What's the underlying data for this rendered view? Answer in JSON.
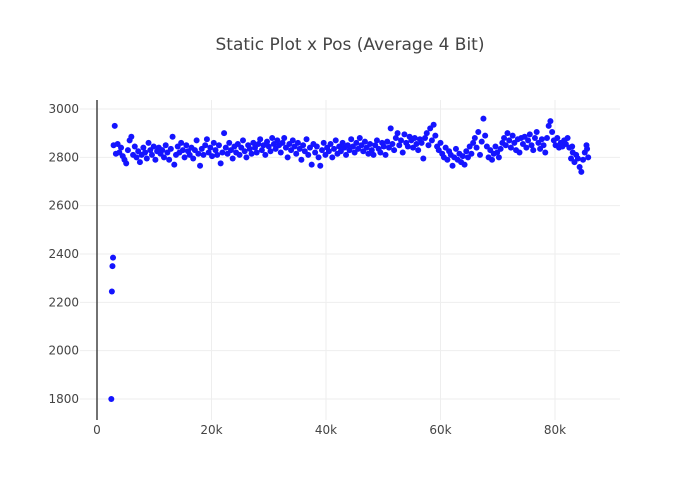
{
  "chart_data": {
    "type": "scatter",
    "title": "Static Plot x Pos (Average 4 Bit)",
    "xlabel": "",
    "ylabel": "",
    "xlim": [
      0,
      91400
    ],
    "ylim": [
      1715,
      3037
    ],
    "grid": true,
    "legend": "none",
    "marker_color": "#1414ff",
    "x_ticks": [
      {
        "v": 0,
        "label": "0"
      },
      {
        "v": 20000,
        "label": "20k"
      },
      {
        "v": 40000,
        "label": "40k"
      },
      {
        "v": 60000,
        "label": "60k"
      },
      {
        "v": 80000,
        "label": "80k"
      }
    ],
    "y_ticks": [
      {
        "v": 1800,
        "label": "1800"
      },
      {
        "v": 2000,
        "label": "2000"
      },
      {
        "v": 2200,
        "label": "2200"
      },
      {
        "v": 2400,
        "label": "2400"
      },
      {
        "v": 2600,
        "label": "2600"
      },
      {
        "v": 2800,
        "label": "2800"
      },
      {
        "v": 3000,
        "label": "3000"
      }
    ],
    "points": [
      [
        2500,
        1800
      ],
      [
        2600,
        2245
      ],
      [
        2700,
        2350
      ],
      [
        2800,
        2385
      ],
      [
        3100,
        2930
      ],
      [
        2900,
        2850
      ],
      [
        3300,
        2815
      ],
      [
        3600,
        2855
      ],
      [
        3900,
        2820
      ],
      [
        4200,
        2840
      ],
      [
        4500,
        2805
      ],
      [
        4800,
        2790
      ],
      [
        5100,
        2775
      ],
      [
        5400,
        2830
      ],
      [
        5700,
        2870
      ],
      [
        6000,
        2885
      ],
      [
        6300,
        2810
      ],
      [
        6600,
        2845
      ],
      [
        6900,
        2800
      ],
      [
        7200,
        2825
      ],
      [
        7500,
        2780
      ],
      [
        7800,
        2810
      ],
      [
        8100,
        2840
      ],
      [
        8400,
        2820
      ],
      [
        8700,
        2795
      ],
      [
        9000,
        2860
      ],
      [
        9300,
        2830
      ],
      [
        9600,
        2810
      ],
      [
        9900,
        2845
      ],
      [
        10200,
        2790
      ],
      [
        10500,
        2825
      ],
      [
        10800,
        2840
      ],
      [
        11100,
        2815
      ],
      [
        11400,
        2830
      ],
      [
        11700,
        2800
      ],
      [
        12000,
        2850
      ],
      [
        12300,
        2820
      ],
      [
        12600,
        2790
      ],
      [
        12900,
        2835
      ],
      [
        13200,
        2885
      ],
      [
        13500,
        2770
      ],
      [
        13800,
        2810
      ],
      [
        14100,
        2845
      ],
      [
        14400,
        2820
      ],
      [
        14700,
        2860
      ],
      [
        15000,
        2830
      ],
      [
        15300,
        2800
      ],
      [
        15600,
        2850
      ],
      [
        15900,
        2825
      ],
      [
        16200,
        2810
      ],
      [
        16500,
        2840
      ],
      [
        16800,
        2795
      ],
      [
        17100,
        2830
      ],
      [
        17400,
        2870
      ],
      [
        17700,
        2815
      ],
      [
        18000,
        2765
      ],
      [
        18300,
        2835
      ],
      [
        18600,
        2810
      ],
      [
        18900,
        2850
      ],
      [
        19200,
        2875
      ],
      [
        19500,
        2820
      ],
      [
        19800,
        2840
      ],
      [
        20100,
        2805
      ],
      [
        20400,
        2860
      ],
      [
        20700,
        2830
      ],
      [
        21000,
        2810
      ],
      [
        21300,
        2850
      ],
      [
        21600,
        2775
      ],
      [
        21900,
        2820
      ],
      [
        22200,
        2900
      ],
      [
        22500,
        2840
      ],
      [
        22800,
        2815
      ],
      [
        23100,
        2860
      ],
      [
        23400,
        2830
      ],
      [
        23700,
        2795
      ],
      [
        24000,
        2845
      ],
      [
        24300,
        2820
      ],
      [
        24600,
        2855
      ],
      [
        24900,
        2810
      ],
      [
        25200,
        2840
      ],
      [
        25500,
        2870
      ],
      [
        25800,
        2825
      ],
      [
        26100,
        2800
      ],
      [
        26400,
        2850
      ],
      [
        26700,
        2835
      ],
      [
        27000,
        2815
      ],
      [
        27300,
        2860
      ],
      [
        27600,
        2840
      ],
      [
        27900,
        2820
      ],
      [
        28200,
        2855
      ],
      [
        28500,
        2875
      ],
      [
        28800,
        2830
      ],
      [
        29100,
        2850
      ],
      [
        29400,
        2810
      ],
      [
        29700,
        2865
      ],
      [
        30000,
        2845
      ],
      [
        30300,
        2825
      ],
      [
        30600,
        2880
      ],
      [
        30900,
        2855
      ],
      [
        31200,
        2835
      ],
      [
        31500,
        2870
      ],
      [
        31800,
        2850
      ],
      [
        32100,
        2820
      ],
      [
        32400,
        2860
      ],
      [
        32700,
        2880
      ],
      [
        33000,
        2840
      ],
      [
        33300,
        2800
      ],
      [
        33600,
        2855
      ],
      [
        33900,
        2830
      ],
      [
        34200,
        2870
      ],
      [
        34500,
        2845
      ],
      [
        34800,
        2815
      ],
      [
        35100,
        2860
      ],
      [
        35400,
        2835
      ],
      [
        35700,
        2790
      ],
      [
        36000,
        2850
      ],
      [
        36300,
        2825
      ],
      [
        36600,
        2875
      ],
      [
        36900,
        2810
      ],
      [
        37200,
        2840
      ],
      [
        37500,
        2770
      ],
      [
        37800,
        2855
      ],
      [
        38100,
        2820
      ],
      [
        38400,
        2845
      ],
      [
        38700,
        2800
      ],
      [
        39000,
        2765
      ],
      [
        39300,
        2830
      ],
      [
        39600,
        2860
      ],
      [
        39900,
        2810
      ],
      [
        40200,
        2840
      ],
      [
        40500,
        2825
      ],
      [
        40800,
        2855
      ],
      [
        41100,
        2800
      ],
      [
        41400,
        2835
      ],
      [
        41700,
        2870
      ],
      [
        42000,
        2815
      ],
      [
        42300,
        2845
      ],
      [
        42600,
        2825
      ],
      [
        42900,
        2860
      ],
      [
        43200,
        2840
      ],
      [
        43500,
        2810
      ],
      [
        43800,
        2850
      ],
      [
        44100,
        2830
      ],
      [
        44400,
        2875
      ],
      [
        44700,
        2845
      ],
      [
        45000,
        2820
      ],
      [
        45300,
        2860
      ],
      [
        45600,
        2835
      ],
      [
        45900,
        2880
      ],
      [
        46200,
        2850
      ],
      [
        46500,
        2825
      ],
      [
        46800,
        2865
      ],
      [
        47100,
        2840
      ],
      [
        47400,
        2815
      ],
      [
        47700,
        2855
      ],
      [
        48000,
        2830
      ],
      [
        48300,
        2810
      ],
      [
        48600,
        2850
      ],
      [
        48900,
        2870
      ],
      [
        49200,
        2835
      ],
      [
        49500,
        2820
      ],
      [
        49800,
        2860
      ],
      [
        50100,
        2845
      ],
      [
        50400,
        2810
      ],
      [
        50700,
        2865
      ],
      [
        51000,
        2840
      ],
      [
        51300,
        2920
      ],
      [
        51600,
        2855
      ],
      [
        51900,
        2830
      ],
      [
        52200,
        2880
      ],
      [
        52500,
        2900
      ],
      [
        52800,
        2850
      ],
      [
        53100,
        2870
      ],
      [
        53400,
        2820
      ],
      [
        53700,
        2895
      ],
      [
        54000,
        2860
      ],
      [
        54300,
        2845
      ],
      [
        54600,
        2885
      ],
      [
        54900,
        2870
      ],
      [
        55200,
        2840
      ],
      [
        55500,
        2880
      ],
      [
        55800,
        2855
      ],
      [
        56100,
        2830
      ],
      [
        56400,
        2875
      ],
      [
        56700,
        2860
      ],
      [
        57000,
        2795
      ],
      [
        57300,
        2880
      ],
      [
        57600,
        2900
      ],
      [
        57900,
        2850
      ],
      [
        58200,
        2920
      ],
      [
        58500,
        2870
      ],
      [
        58800,
        2935
      ],
      [
        59100,
        2890
      ],
      [
        59400,
        2845
      ],
      [
        59700,
        2830
      ],
      [
        60000,
        2860
      ],
      [
        60300,
        2815
      ],
      [
        60600,
        2800
      ],
      [
        60900,
        2840
      ],
      [
        61200,
        2790
      ],
      [
        61500,
        2825
      ],
      [
        61800,
        2810
      ],
      [
        62100,
        2765
      ],
      [
        62400,
        2800
      ],
      [
        62700,
        2835
      ],
      [
        63000,
        2790
      ],
      [
        63300,
        2815
      ],
      [
        63600,
        2780
      ],
      [
        63900,
        2805
      ],
      [
        64200,
        2770
      ],
      [
        64500,
        2825
      ],
      [
        64800,
        2800
      ],
      [
        65100,
        2845
      ],
      [
        65400,
        2815
      ],
      [
        65700,
        2860
      ],
      [
        66000,
        2880
      ],
      [
        66300,
        2840
      ],
      [
        66600,
        2905
      ],
      [
        66900,
        2810
      ],
      [
        67200,
        2865
      ],
      [
        67500,
        2960
      ],
      [
        67800,
        2890
      ],
      [
        68100,
        2845
      ],
      [
        68400,
        2800
      ],
      [
        68700,
        2830
      ],
      [
        69000,
        2790
      ],
      [
        69300,
        2815
      ],
      [
        69600,
        2845
      ],
      [
        69900,
        2820
      ],
      [
        70200,
        2800
      ],
      [
        70500,
        2835
      ],
      [
        70800,
        2860
      ],
      [
        71100,
        2880
      ],
      [
        71400,
        2850
      ],
      [
        71700,
        2900
      ],
      [
        72000,
        2870
      ],
      [
        72300,
        2840
      ],
      [
        72600,
        2890
      ],
      [
        72900,
        2860
      ],
      [
        73200,
        2830
      ],
      [
        73500,
        2875
      ],
      [
        73800,
        2820
      ],
      [
        74100,
        2880
      ],
      [
        74400,
        2855
      ],
      [
        74700,
        2885
      ],
      [
        75000,
        2840
      ],
      [
        75300,
        2870
      ],
      [
        75600,
        2895
      ],
      [
        75900,
        2850
      ],
      [
        76200,
        2830
      ],
      [
        76500,
        2880
      ],
      [
        76800,
        2905
      ],
      [
        77100,
        2860
      ],
      [
        77400,
        2835
      ],
      [
        77700,
        2875
      ],
      [
        78000,
        2850
      ],
      [
        78300,
        2820
      ],
      [
        78600,
        2880
      ],
      [
        78900,
        2930
      ],
      [
        79200,
        2950
      ],
      [
        79500,
        2905
      ],
      [
        79800,
        2870
      ],
      [
        80100,
        2850
      ],
      [
        80400,
        2880
      ],
      [
        80700,
        2840
      ],
      [
        81000,
        2860
      ],
      [
        81300,
        2845
      ],
      [
        81600,
        2870
      ],
      [
        81900,
        2855
      ],
      [
        82200,
        2880
      ],
      [
        82500,
        2840
      ],
      [
        82800,
        2795
      ],
      [
        83100,
        2820
      ],
      [
        83400,
        2780
      ],
      [
        83700,
        2810
      ],
      [
        84000,
        2795
      ],
      [
        84300,
        2760
      ],
      [
        84600,
        2740
      ],
      [
        84900,
        2790
      ],
      [
        85200,
        2820
      ],
      [
        85500,
        2850
      ],
      [
        85800,
        2800
      ],
      [
        85600,
        2835
      ],
      [
        83000,
        2845
      ]
    ]
  }
}
